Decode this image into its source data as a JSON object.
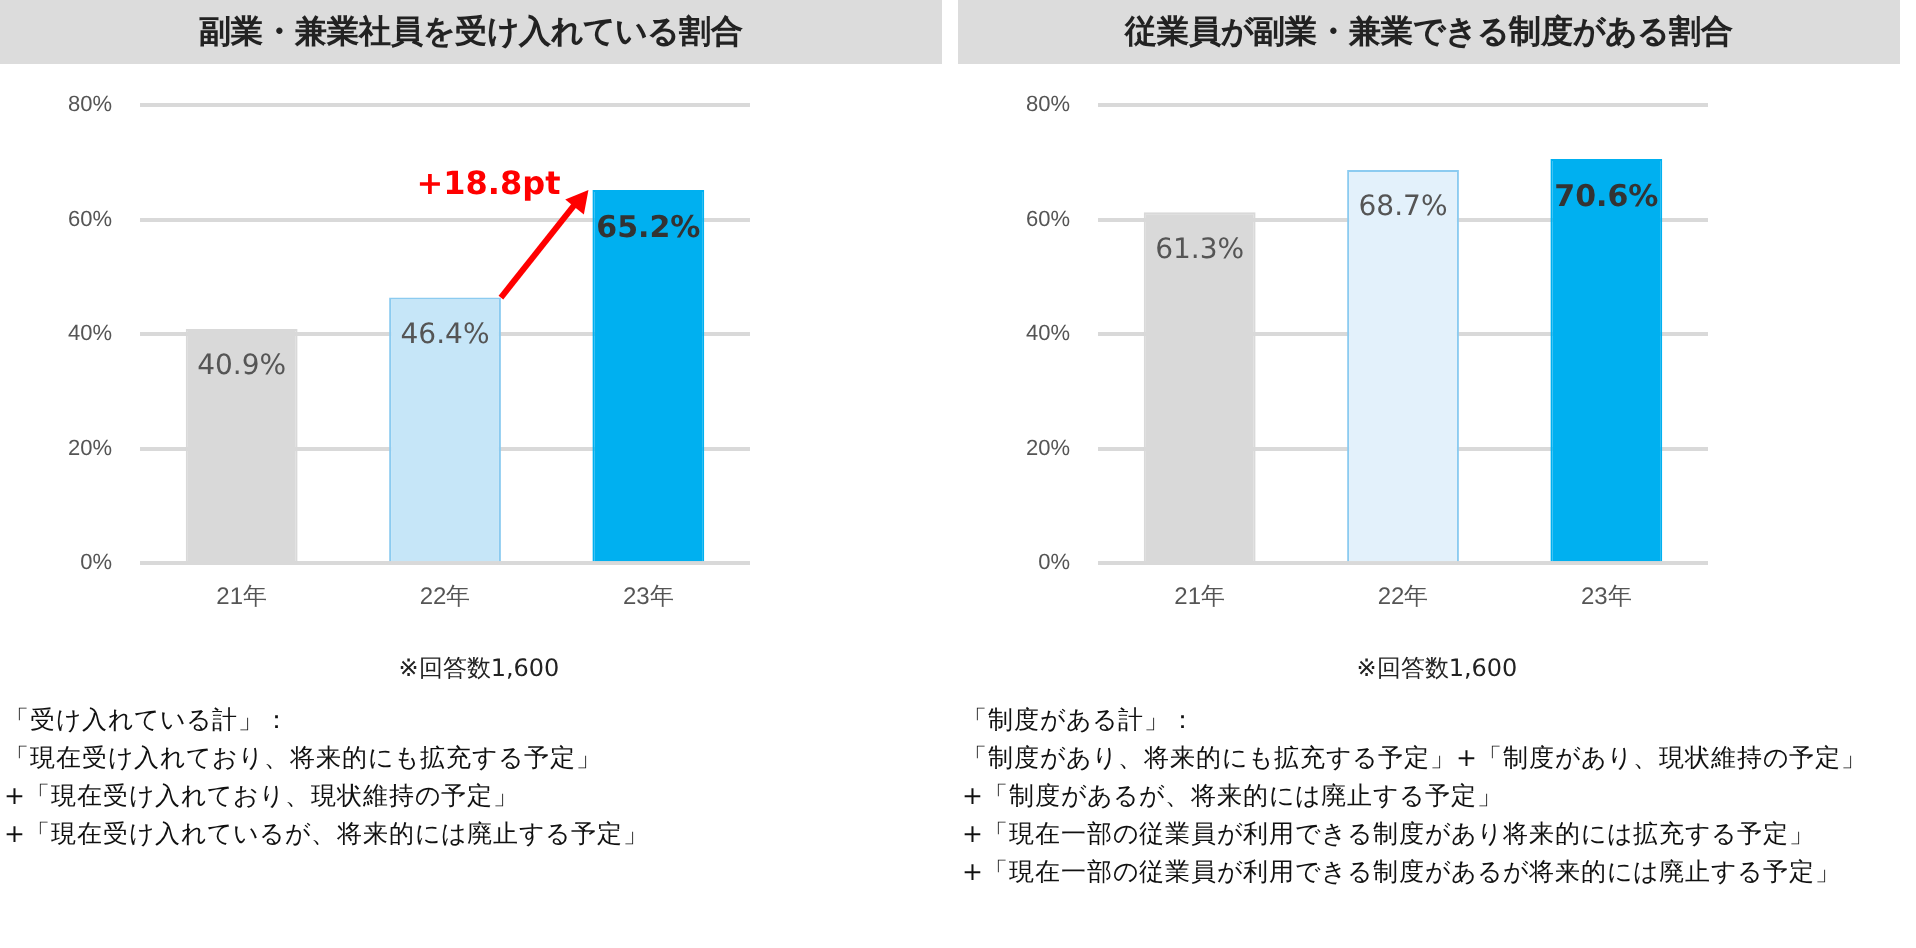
{
  "chart_data": [
    {
      "type": "bar",
      "title": "副業・兼業社員を受け入れている割合",
      "categories": [
        "21年",
        "22年",
        "23年"
      ],
      "values": [
        40.9,
        46.4,
        65.2
      ],
      "colors": [
        "#d9d9d9",
        "#c6e6f8",
        "#00b0f0"
      ],
      "ylim": [
        0,
        80
      ],
      "yticks": [
        {
          "value": 0,
          "label": "0%"
        },
        {
          "value": 20,
          "label": "20%"
        },
        {
          "value": 40,
          "label": "40%"
        },
        {
          "value": 60,
          "label": "60%"
        },
        {
          "value": 80,
          "label": "80%"
        }
      ],
      "grid": "y",
      "data_labels": true,
      "value_labels": [
        "40.9%",
        "46.4%",
        "65.2%"
      ],
      "annotations": [
        {
          "text": "+18.8pt",
          "x": "23年",
          "y": 65.2
        },
        "※回答数1,600",
        "「受け入れている計」：",
        "「現在受け入れており、将来的にも拡充する予定」",
        "+「現在受け入れており、現状維持の予定」",
        "+「現在受け入れているが、将来的には廃止する予定」"
      ]
    },
    {
      "type": "bar",
      "title": "従業員が副業・兼業できる制度がある割合",
      "categories": [
        "21年",
        "22年",
        "23年"
      ],
      "values": [
        61.3,
        68.7,
        70.6
      ],
      "colors": [
        "#d9d9d9",
        "#e3f1fb",
        "#00b0f0"
      ],
      "ylim": [
        0,
        80
      ],
      "yticks": [
        {
          "value": 0,
          "label": "0%"
        },
        {
          "value": 20,
          "label": "20%"
        },
        {
          "value": 40,
          "label": "40%"
        },
        {
          "value": 60,
          "label": "60%"
        },
        {
          "value": 80,
          "label": "80%"
        }
      ],
      "grid": "y",
      "data_labels": true,
      "value_labels": [
        "61.3%",
        "68.7%",
        "70.6%"
      ],
      "annotations": [
        "※回答数1,600",
        "「制度がある計」：",
        "「制度があり、将来的にも拡充する予定」+「制度があり、現状維持の予定」",
        "+「制度があるが、将来的には廃止する予定」",
        "+「現在一部の従業員が利用できる制度があり将来的には拡充する予定」",
        "+「現在一部の従業員が利用できる制度があるが将来的には廃止する予定」"
      ]
    }
  ]
}
